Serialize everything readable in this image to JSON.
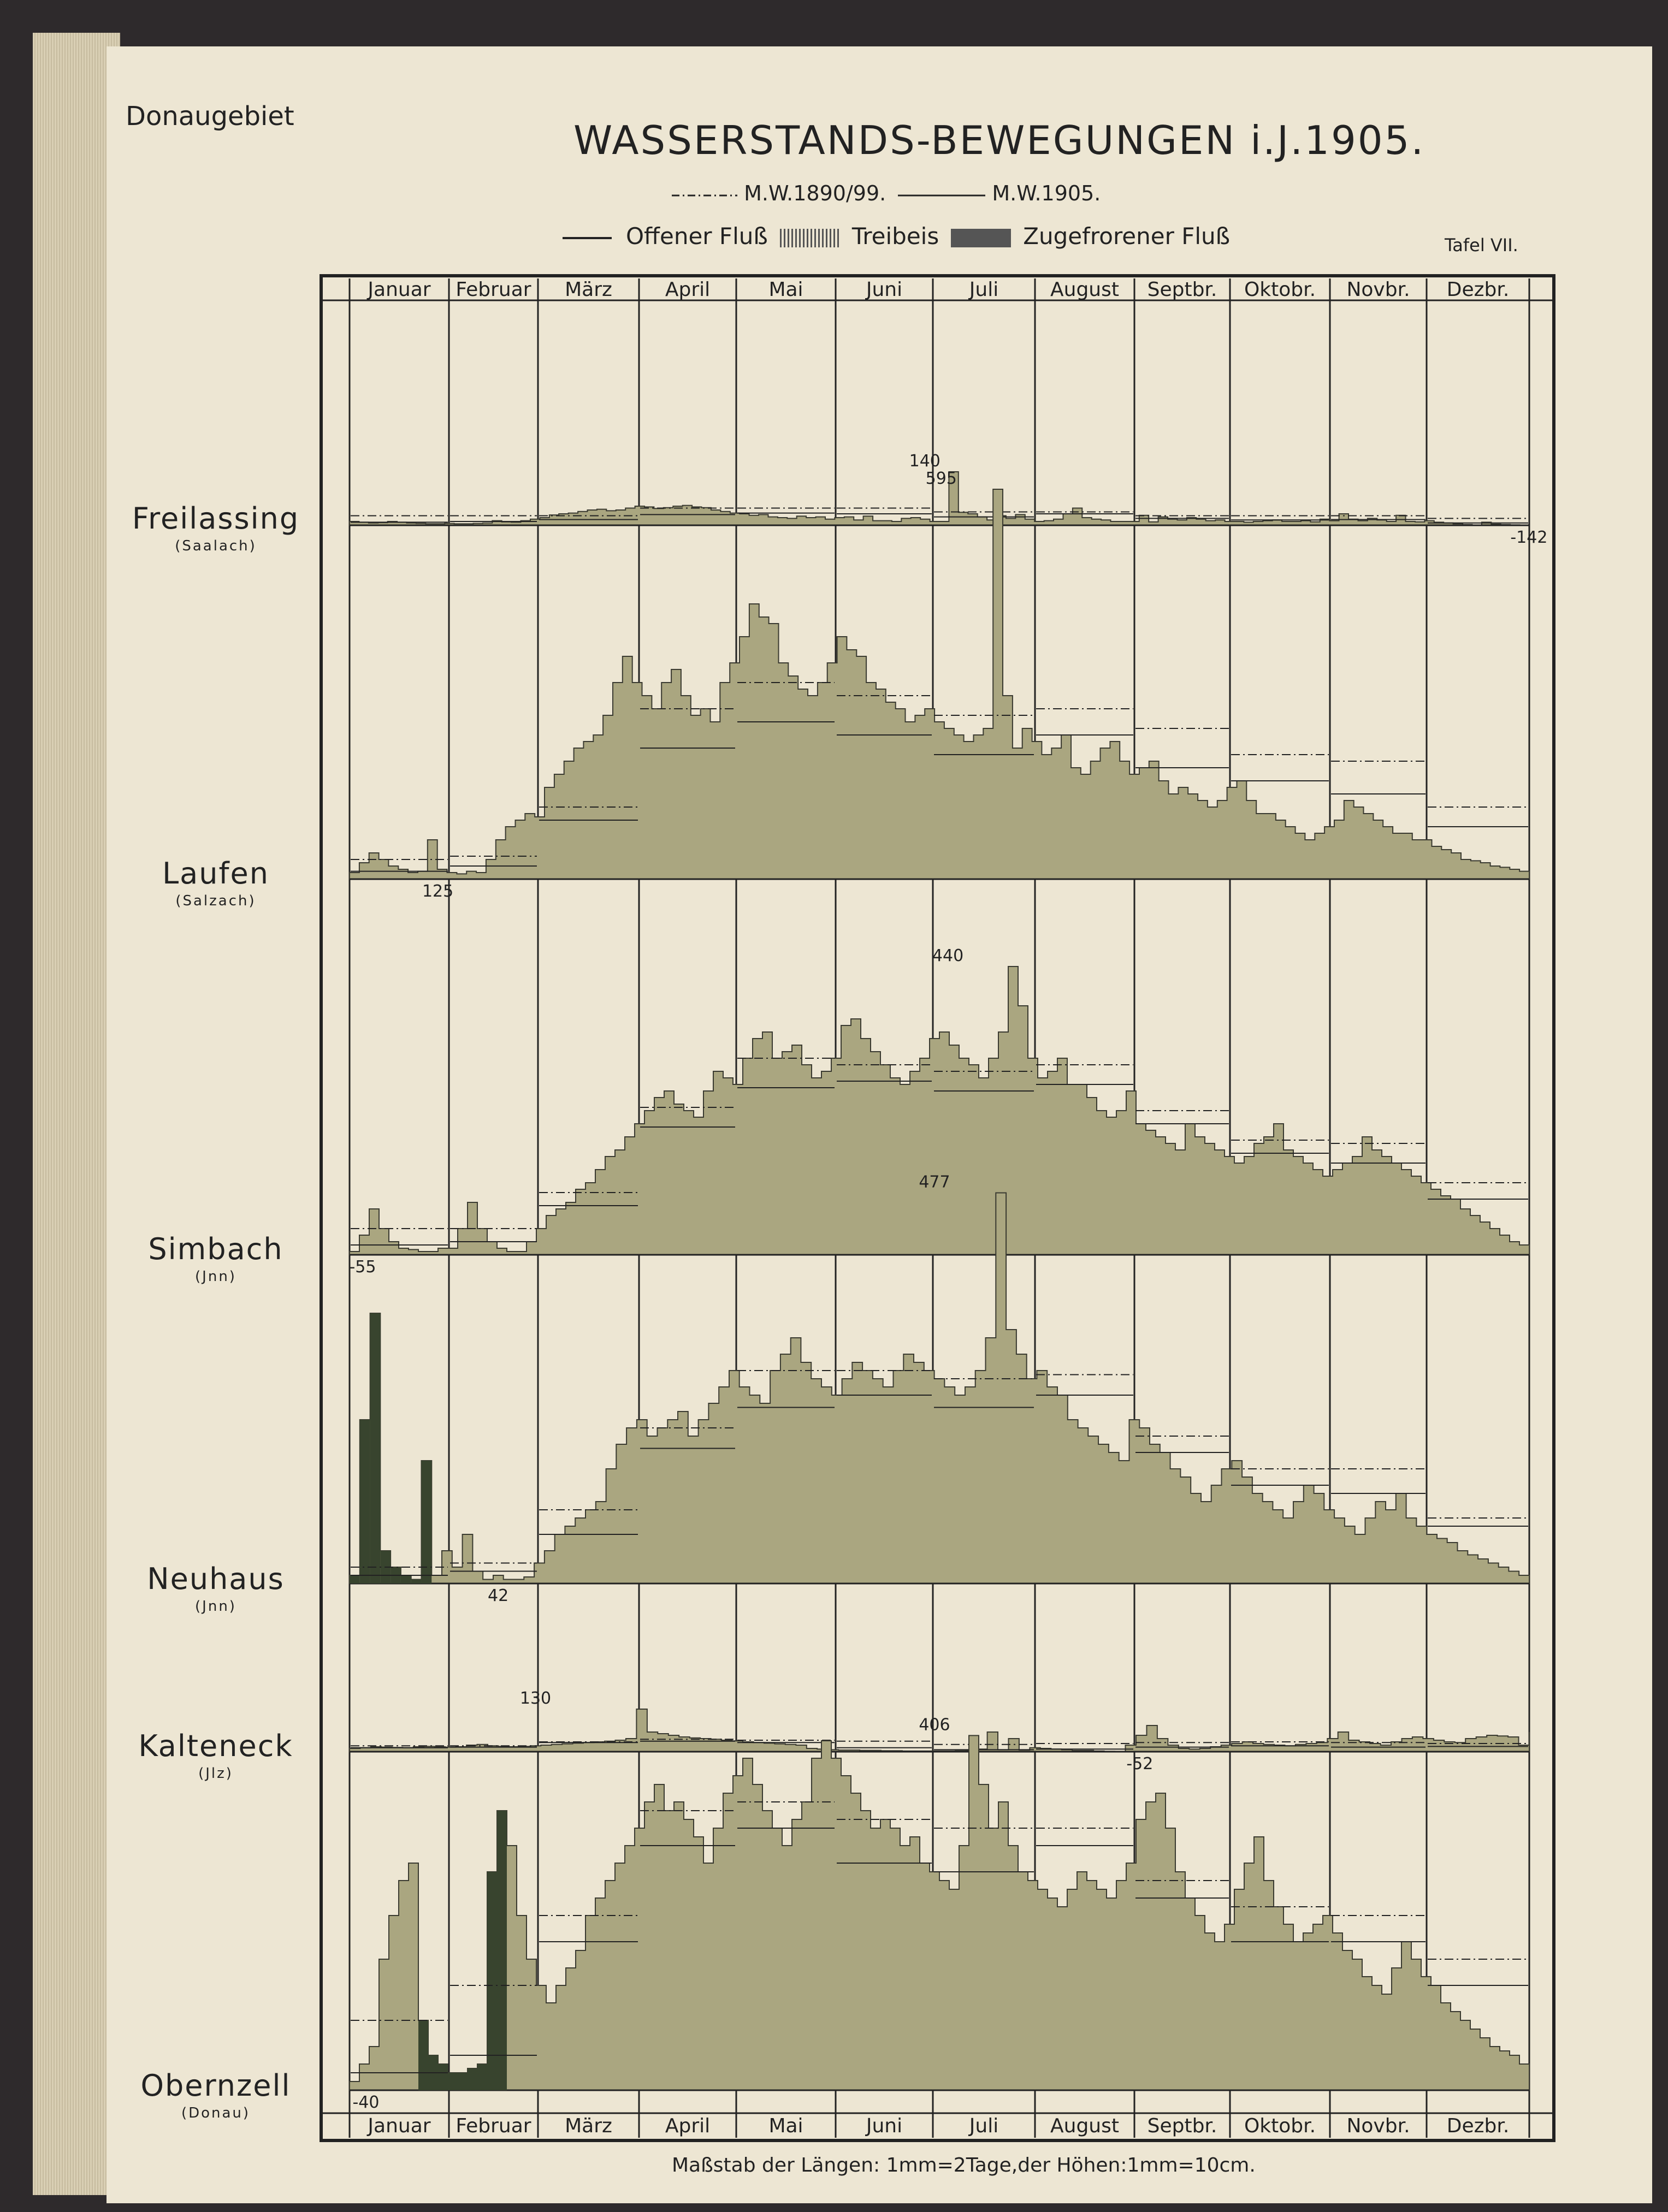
{
  "header": {
    "region": "Donaugebiet",
    "title": "WASSERSTANDS-BEWEGUNGEN i.J.1905.",
    "plate": "Tafel VII."
  },
  "legend": {
    "mw_mean": "M.W.1890/99.",
    "mw_year": "M.W.1905.",
    "open": "Offener Fluß",
    "drift_ice": "Treibeis",
    "frozen": "Zugefrorener Fluß"
  },
  "footnote": "Maßstab der Längen: 1mm=2Tage,der Höhen:1mm=10cm.",
  "colors": {
    "fill": "#aaa680",
    "frozen": "#38442e",
    "ink": "#222222",
    "paper": "#ede6d3"
  },
  "chart_data": {
    "type": "area",
    "x_unit": "Tage (1905)",
    "months_top": [
      "Januar",
      "Februar",
      "März",
      "April",
      "Mai",
      "Juni",
      "Juli",
      "August",
      "Septbr.",
      "Oktobr.",
      "Novbr.",
      "Dezbr."
    ],
    "months_bottom": [
      "Januar",
      "Februar",
      "März",
      "April",
      "Mai",
      "Juni",
      "Juli",
      "August",
      "Septbr.",
      "Oktobr.",
      "Novbr.",
      "Dezbr."
    ],
    "series": [
      {
        "name": "Freilassing",
        "river": "(Saalach)",
        "baseline": -142,
        "scale_cm": 7,
        "mw_mean": [
          25,
          25,
          25,
          45,
          45,
          45,
          35,
          35,
          25,
          25,
          25,
          18
        ],
        "mw_year": [
          8,
          10,
          15,
          28,
          32,
          30,
          22,
          30,
          18,
          14,
          15,
          6
        ],
        "values": [
          10,
          8,
          6,
          7,
          10,
          8,
          6,
          5,
          4,
          4,
          5,
          4,
          4,
          5,
          6,
          12,
          9,
          8,
          12,
          16,
          20,
          27,
          30,
          32,
          36,
          40,
          42,
          38,
          40,
          45,
          50,
          48,
          44,
          46,
          50,
          52,
          48,
          46,
          40,
          36,
          32,
          30,
          26,
          28,
          22,
          20,
          18,
          24,
          20,
          22,
          16,
          20,
          22,
          14,
          24,
          12,
          12,
          10,
          18,
          20,
          16,
          10,
          10,
          140,
          34,
          30,
          22,
          14,
          25,
          18,
          28,
          16,
          10,
          12,
          16,
          30,
          45,
          20,
          16,
          14,
          10,
          10,
          10,
          26,
          9,
          22,
          16,
          14,
          20,
          16,
          12,
          14,
          10,
          10,
          8,
          10,
          12,
          14,
          10,
          10,
          12,
          9,
          16,
          12,
          30,
          16,
          12,
          18,
          14,
          10,
          26,
          10,
          9,
          12,
          8,
          6,
          4,
          2,
          0,
          8,
          3,
          2,
          1,
          0,
          0
        ],
        "peaks": [
          {
            "label": "140",
            "day": 180,
            "value": 140
          }
        ],
        "lows": [
          {
            "label": "-142",
            "day": 363,
            "value": 0
          }
        ]
      },
      {
        "name": "Laufen",
        "river": "(Salzach)",
        "baseline": 125,
        "scale_cm": 12,
        "mw_mean": [
          30,
          35,
          110,
          260,
          300,
          280,
          250,
          260,
          230,
          190,
          180,
          110
        ],
        "mw_year": [
          12,
          20,
          90,
          200,
          240,
          220,
          190,
          220,
          170,
          150,
          130,
          80
        ],
        "values": [
          10,
          25,
          40,
          30,
          20,
          15,
          10,
          12,
          60,
          15,
          10,
          8,
          12,
          10,
          30,
          60,
          80,
          90,
          100,
          95,
          140,
          160,
          180,
          200,
          210,
          220,
          250,
          300,
          340,
          300,
          280,
          260,
          300,
          320,
          280,
          250,
          260,
          240,
          300,
          330,
          370,
          420,
          400,
          390,
          330,
          310,
          290,
          280,
          300,
          330,
          370,
          350,
          340,
          300,
          290,
          270,
          260,
          240,
          250,
          260,
          240,
          230,
          220,
          210,
          220,
          230,
          595,
          280,
          200,
          230,
          210,
          190,
          200,
          220,
          170,
          160,
          180,
          200,
          210,
          180,
          160,
          170,
          180,
          150,
          130,
          140,
          130,
          120,
          110,
          120,
          140,
          150,
          120,
          100,
          100,
          90,
          80,
          70,
          60,
          70,
          80,
          90,
          120,
          110,
          100,
          90,
          80,
          70,
          70,
          60,
          60,
          50,
          45,
          40,
          30,
          28,
          25,
          20,
          18,
          15,
          12,
          10
        ],
        "peaks": [
          {
            "label": "595",
            "day": 185,
            "value": 595
          }
        ],
        "lows": [
          {
            "label": "125",
            "day": 25,
            "value": 10
          }
        ]
      },
      {
        "name": "Simbach",
        "river": "(Jnn)",
        "baseline": -55,
        "scale_cm": 12,
        "mw_mean": [
          40,
          40,
          95,
          225,
          300,
          290,
          280,
          290,
          220,
          175,
          170,
          110
        ],
        "mw_year": [
          15,
          20,
          75,
          195,
          255,
          265,
          250,
          260,
          200,
          155,
          140,
          85
        ],
        "values": [
          5,
          30,
          70,
          40,
          20,
          10,
          8,
          5,
          5,
          10,
          10,
          40,
          80,
          40,
          20,
          10,
          5,
          5,
          20,
          40,
          60,
          70,
          80,
          100,
          110,
          130,
          150,
          160,
          180,
          200,
          220,
          240,
          250,
          230,
          220,
          210,
          250,
          280,
          270,
          260,
          300,
          330,
          340,
          300,
          310,
          320,
          290,
          270,
          280,
          300,
          350,
          360,
          330,
          310,
          290,
          270,
          260,
          280,
          300,
          330,
          340,
          320,
          300,
          290,
          270,
          300,
          340,
          440,
          380,
          300,
          270,
          280,
          300,
          260,
          260,
          240,
          220,
          210,
          220,
          250,
          200,
          190,
          180,
          170,
          160,
          200,
          180,
          170,
          160,
          150,
          140,
          150,
          170,
          180,
          200,
          160,
          150,
          140,
          130,
          120,
          130,
          140,
          150,
          180,
          160,
          150,
          140,
          130,
          120,
          110,
          100,
          90,
          85,
          70,
          60,
          50,
          40,
          30,
          20,
          15,
          10
        ],
        "peaks": [
          {
            "label": "440",
            "day": 187,
            "value": 440
          }
        ],
        "lows": [
          {
            "label": "-55",
            "day": 2,
            "value": 5
          }
        ]
      },
      {
        "name": "Neuhaus",
        "river": "(Jnn)",
        "baseline": 42,
        "scale_cm": 15,
        "mw_mean": [
          20,
          25,
          90,
          190,
          260,
          260,
          250,
          255,
          180,
          140,
          140,
          80
        ],
        "mw_year": [
          10,
          15,
          60,
          165,
          215,
          230,
          215,
          230,
          160,
          120,
          110,
          70
        ],
        "values": [
          10,
          200,
          330,
          40,
          20,
          10,
          5,
          150,
          10,
          40,
          20,
          60,
          15,
          5,
          10,
          5,
          5,
          8,
          25,
          40,
          60,
          70,
          80,
          90,
          100,
          140,
          170,
          190,
          200,
          180,
          190,
          200,
          210,
          180,
          200,
          220,
          240,
          260,
          240,
          230,
          220,
          260,
          280,
          300,
          270,
          250,
          240,
          230,
          250,
          270,
          260,
          250,
          240,
          260,
          280,
          270,
          260,
          250,
          240,
          230,
          240,
          260,
          300,
          477,
          310,
          280,
          250,
          260,
          240,
          230,
          200,
          190,
          180,
          170,
          160,
          150,
          200,
          190,
          170,
          160,
          140,
          130,
          110,
          100,
          120,
          140,
          150,
          130,
          110,
          100,
          90,
          80,
          100,
          120,
          110,
          90,
          80,
          70,
          60,
          80,
          100,
          90,
          110,
          80,
          70,
          60,
          55,
          50,
          40,
          35,
          30,
          25,
          20,
          15,
          10,
          5
        ],
        "peaks": [
          {
            "label": "477",
            "day": 183,
            "value": 477
          }
        ],
        "lows": [
          {
            "label": "42",
            "day": 45,
            "value": 5
          }
        ]
      },
      {
        "name": "Kalteneck",
        "river": "(Jlz)",
        "baseline": -52,
        "scale_cm": 6,
        "mw_mean": [
          18,
          18,
          30,
          38,
          35,
          32,
          22,
          25,
          28,
          30,
          28,
          25
        ],
        "mw_year": [
          12,
          14,
          28,
          32,
          28,
          12,
          6,
          8,
          14,
          18,
          14,
          16
        ],
        "values": [
          10,
          12,
          15,
          14,
          13,
          12,
          15,
          16,
          15,
          14,
          15,
          20,
          22,
          18,
          16,
          15,
          16,
          18,
          20,
          22,
          24,
          26,
          28,
          30,
          32,
          35,
          40,
          130,
          60,
          55,
          50,
          45,
          42,
          40,
          38,
          35,
          33,
          30,
          28,
          26,
          24,
          22,
          20,
          10,
          8,
          6,
          5,
          5,
          4,
          4,
          3,
          3,
          2,
          2,
          2,
          2,
          2,
          3,
          4,
          8,
          60,
          6,
          40,
          5,
          12,
          10,
          8,
          6,
          4,
          4,
          2,
          1,
          0,
          20,
          50,
          80,
          40,
          20,
          10,
          8,
          10,
          15,
          20,
          25,
          30,
          25,
          22,
          20,
          18,
          22,
          25,
          28,
          40,
          60,
          35,
          30,
          25,
          20,
          30,
          40,
          45,
          40,
          35,
          30,
          28,
          40,
          45,
          50,
          48,
          45,
          20,
          60
        ],
        "peaks": [
          {
            "label": "130",
            "day": 60,
            "value": 130
          }
        ],
        "lows": [
          {
            "label": "-52",
            "day": 243,
            "value": 0
          }
        ]
      },
      {
        "name": "Obernzell",
        "river": "(Donau)",
        "baseline": -40,
        "scale_cm": 16,
        "mw_mean": [
          80,
          120,
          200,
          320,
          330,
          310,
          300,
          300,
          240,
          210,
          200,
          150
        ],
        "mw_year": [
          20,
          40,
          170,
          280,
          300,
          260,
          250,
          280,
          220,
          170,
          170,
          120
        ],
        "values": [
          10,
          30,
          50,
          150,
          200,
          240,
          260,
          80,
          40,
          30,
          20,
          20,
          25,
          30,
          250,
          320,
          280,
          200,
          150,
          120,
          100,
          120,
          140,
          160,
          200,
          220,
          240,
          260,
          280,
          300,
          330,
          350,
          320,
          330,
          310,
          290,
          260,
          300,
          340,
          360,
          380,
          350,
          320,
          300,
          280,
          310,
          330,
          380,
          400,
          380,
          360,
          340,
          320,
          300,
          310,
          300,
          280,
          290,
          260,
          250,
          240,
          230,
          280,
          406,
          350,
          300,
          330,
          280,
          250,
          240,
          230,
          220,
          210,
          230,
          250,
          240,
          230,
          220,
          240,
          260,
          310,
          330,
          340,
          300,
          250,
          220,
          200,
          180,
          170,
          190,
          230,
          260,
          290,
          240,
          210,
          190,
          170,
          180,
          190,
          200,
          180,
          160,
          150,
          130,
          120,
          110,
          140,
          170,
          150,
          130,
          120,
          100,
          90,
          80,
          70,
          60,
          50,
          45,
          40,
          30,
          25
        ],
        "peaks": [
          {
            "label": "406",
            "day": 183,
            "value": 406
          }
        ],
        "lows": [
          {
            "label": "-40",
            "day": 3,
            "value": 10
          }
        ]
      }
    ]
  }
}
